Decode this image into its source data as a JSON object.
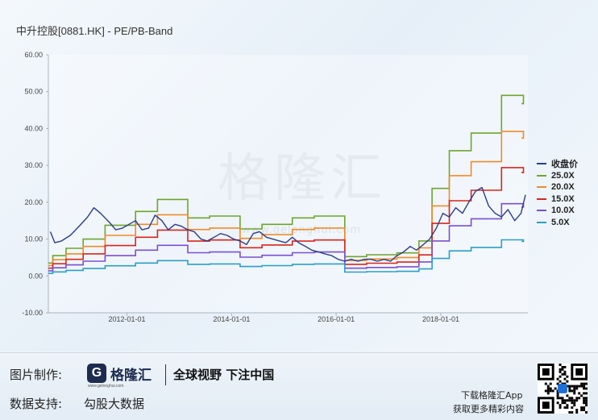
{
  "title": "中升控股[0881.HK] - PE/PB-Band",
  "watermark": "格隆汇",
  "watermark_url": "www.gelonghui.com",
  "chart_data": {
    "type": "line",
    "title": "中升控股[0881.HK] - PE/PB-Band",
    "ylim": [
      -10,
      60
    ],
    "yticks": [
      "-10.00",
      "0.00",
      "10.00",
      "20.00",
      "30.00",
      "40.00",
      "50.00",
      "60.00"
    ],
    "yticks_values": [
      -10,
      0,
      10,
      20,
      30,
      40,
      50,
      60
    ],
    "xlim": [
      "2010-07-01",
      "2019-09-01"
    ],
    "xticks": [
      "2012-01-01",
      "2014-01-01",
      "2016-01-01",
      "2018-01-01"
    ],
    "grid": false,
    "legend_position": "right",
    "colors": {
      "price": "#2e3d87",
      "25x": "#6ea42f",
      "20x": "#ef8a2a",
      "15x": "#d7261e",
      "10x": "#7b4fd0",
      "5x": "#2b9fc4"
    },
    "band_steps": {
      "dates": [
        "2010-07-01",
        "2010-08-01",
        "2010-11-01",
        "2011-03-01",
        "2011-08-01",
        "2012-03-01",
        "2012-08-01",
        "2013-03-01",
        "2013-08-01",
        "2014-03-01",
        "2014-08-01",
        "2015-03-01",
        "2015-08-01",
        "2016-03-01",
        "2016-08-01",
        "2017-03-01",
        "2017-08-01",
        "2017-11-01",
        "2018-03-01",
        "2018-08-01",
        "2019-03-01",
        "2019-08-01"
      ],
      "eps": [
        0.14,
        0.22,
        0.3,
        0.4,
        0.55,
        0.7,
        0.83,
        0.63,
        0.65,
        0.51,
        0.56,
        0.63,
        0.65,
        0.21,
        0.23,
        0.25,
        0.38,
        0.95,
        1.36,
        1.55,
        1.96,
        1.87
      ]
    },
    "series": [
      {
        "name": "收盘价",
        "x": [
          "2010-07-15",
          "2010-08-15",
          "2010-10-01",
          "2010-12-01",
          "2011-02-01",
          "2011-04-01",
          "2011-05-15",
          "2011-07-01",
          "2011-09-01",
          "2011-10-15",
          "2011-12-01",
          "2012-01-15",
          "2012-03-01",
          "2012-04-15",
          "2012-06-01",
          "2012-07-15",
          "2012-09-01",
          "2012-10-15",
          "2012-12-01",
          "2013-01-15",
          "2013-03-01",
          "2013-04-15",
          "2013-06-01",
          "2013-07-15",
          "2013-09-01",
          "2013-10-15",
          "2013-12-01",
          "2014-01-15",
          "2014-03-01",
          "2014-04-15",
          "2014-06-01",
          "2014-07-15",
          "2014-09-01",
          "2014-10-15",
          "2014-12-01",
          "2015-01-15",
          "2015-03-01",
          "2015-04-15",
          "2015-06-01",
          "2015-07-15",
          "2015-09-01",
          "2015-10-15",
          "2015-12-01",
          "2016-01-15",
          "2016-03-01",
          "2016-04-15",
          "2016-06-01",
          "2016-07-15",
          "2016-09-01",
          "2016-10-15",
          "2016-12-01",
          "2017-01-15",
          "2017-03-01",
          "2017-04-15",
          "2017-06-01",
          "2017-07-15",
          "2017-09-01",
          "2017-10-15",
          "2017-12-01",
          "2018-01-15",
          "2018-03-01",
          "2018-04-15",
          "2018-06-01",
          "2018-07-15",
          "2018-09-01",
          "2018-10-15",
          "2018-12-01",
          "2019-01-15",
          "2019-03-01",
          "2019-04-15",
          "2019-06-01",
          "2019-07-15",
          "2019-08-15"
        ],
        "values": [
          12.0,
          9.0,
          9.5,
          11.0,
          13.5,
          16.0,
          18.5,
          17.0,
          14.5,
          12.5,
          13.0,
          14.0,
          15.0,
          12.5,
          13.0,
          16.5,
          15.0,
          12.5,
          14.0,
          13.5,
          12.5,
          12.0,
          10.0,
          9.5,
          10.5,
          11.5,
          11.0,
          10.0,
          9.5,
          8.5,
          11.5,
          12.0,
          10.5,
          10.0,
          9.5,
          9.0,
          10.5,
          9.0,
          8.0,
          7.0,
          6.5,
          6.0,
          5.5,
          4.5,
          4.0,
          4.5,
          4.0,
          4.5,
          4.5,
          4.0,
          4.5,
          4.0,
          5.5,
          6.5,
          8.0,
          7.0,
          8.5,
          10.0,
          13.0,
          17.0,
          16.0,
          18.5,
          17.0,
          20.0,
          23.0,
          24.0,
          19.0,
          17.0,
          16.0,
          18.0,
          15.0,
          17.0,
          22.0
        ]
      },
      {
        "name": "25.0X",
        "multiple": 25
      },
      {
        "name": "20.0X",
        "multiple": 20
      },
      {
        "name": "15.0X",
        "multiple": 15
      },
      {
        "name": "10.0X",
        "multiple": 10
      },
      {
        "name": "5.0X",
        "multiple": 5
      }
    ]
  },
  "legend": [
    {
      "label": "收盘价",
      "color": "#2e3d87"
    },
    {
      "label": "25.0X",
      "color": "#6ea42f"
    },
    {
      "label": "20.0X",
      "color": "#ef8a2a"
    },
    {
      "label": "15.0X",
      "color": "#d7261e"
    },
    {
      "label": "10.0X",
      "color": "#7b4fd0"
    },
    {
      "label": "5.0X",
      "color": "#2b9fc4"
    }
  ],
  "footer": {
    "made_label": "图片制作:",
    "logo_letter": "G",
    "logo_name": "格隆汇",
    "logo_url": "www.gelonghui.com",
    "slogan": "全球视野 下注中国",
    "data_label": "数据支持:",
    "data_source": "勾股大数据",
    "download_line1": "下载格隆汇App",
    "download_line2": "获取更多精彩内容"
  }
}
